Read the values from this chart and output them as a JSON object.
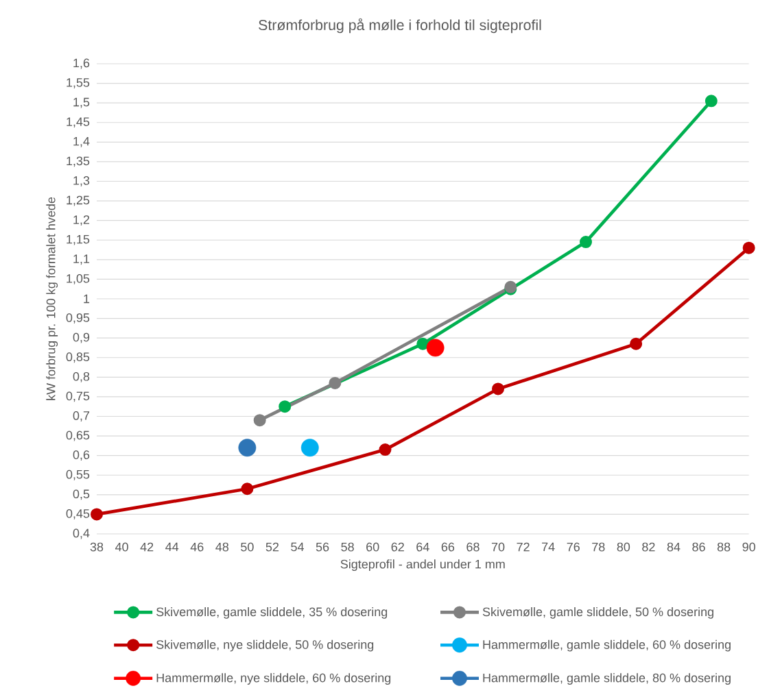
{
  "chart_data": {
    "type": "line",
    "title": "Strømforbrug på mølle i forhold til sigteprofil",
    "xlabel": "Sigteprofil - andel under 1 mm",
    "ylabel": "kW forbrug pr. 100 kg formalet hvede",
    "xlim": [
      38,
      90
    ],
    "xticks": [
      38,
      40,
      42,
      44,
      46,
      48,
      50,
      52,
      54,
      56,
      58,
      60,
      62,
      64,
      66,
      68,
      70,
      72,
      74,
      76,
      78,
      80,
      82,
      84,
      86,
      88,
      90
    ],
    "ylim": [
      0.4,
      1.6
    ],
    "yticks": [
      {
        "value": 0.4,
        "label": "0,4"
      },
      {
        "value": 0.45,
        "label": "0,45"
      },
      {
        "value": 0.5,
        "label": "0,5"
      },
      {
        "value": 0.55,
        "label": "0,55"
      },
      {
        "value": 0.6,
        "label": "0,6"
      },
      {
        "value": 0.65,
        "label": "0,65"
      },
      {
        "value": 0.7,
        "label": "0,7"
      },
      {
        "value": 0.75,
        "label": "0,75"
      },
      {
        "value": 0.8,
        "label": "0,8"
      },
      {
        "value": 0.85,
        "label": "0,85"
      },
      {
        "value": 0.9,
        "label": "0,9"
      },
      {
        "value": 0.95,
        "label": "0,95"
      },
      {
        "value": 1,
        "label": "1"
      },
      {
        "value": 1.05,
        "label": "1,05"
      },
      {
        "value": 1.1,
        "label": "1,1"
      },
      {
        "value": 1.15,
        "label": "1,15"
      },
      {
        "value": 1.2,
        "label": "1,2"
      },
      {
        "value": 1.25,
        "label": "1,25"
      },
      {
        "value": 1.3,
        "label": "1,3"
      },
      {
        "value": 1.35,
        "label": "1,35"
      },
      {
        "value": 1.4,
        "label": "1,4"
      },
      {
        "value": 1.45,
        "label": "1,45"
      },
      {
        "value": 1.5,
        "label": "1,5"
      },
      {
        "value": 1.55,
        "label": "1,55"
      },
      {
        "value": 1.6,
        "label": "1,6"
      }
    ],
    "grid": "y",
    "legend": "bottom",
    "marker": "circle",
    "line_style": "solid",
    "series": [
      {
        "name": "Skivemølle, gamle sliddele, 35 % dosering",
        "color": "#00b050",
        "x": [
          53,
          64,
          71,
          77,
          87
        ],
        "values": [
          0.725,
          0.885,
          1.025,
          1.145,
          1.505
        ]
      },
      {
        "name": "Skivemølle, gamle sliddele, 50 % dosering",
        "color": "#808080",
        "x": [
          51,
          57,
          71
        ],
        "values": [
          0.69,
          0.785,
          1.03
        ]
      },
      {
        "name": "Skivemølle, nye sliddele, 50 % dosering",
        "color": "#c00000",
        "x": [
          38,
          50,
          61,
          70,
          81,
          90
        ],
        "values": [
          0.45,
          0.515,
          0.615,
          0.77,
          0.885,
          1.13
        ]
      },
      {
        "name": "Hammermølle, gamle sliddele, 60 % dosering",
        "type": "scatter",
        "color": "#00b0f0",
        "x": [
          55
        ],
        "values": [
          0.62
        ]
      },
      {
        "name": "Hammermølle, nye sliddele, 60 % dosering",
        "type": "scatter",
        "color": "#ff0000",
        "x": [
          65
        ],
        "values": [
          0.875
        ]
      },
      {
        "name": "Hammermølle, gamle sliddele, 80 % dosering",
        "type": "scatter",
        "color": "#2e75b6",
        "x": [
          50
        ],
        "values": [
          0.62
        ]
      }
    ]
  }
}
